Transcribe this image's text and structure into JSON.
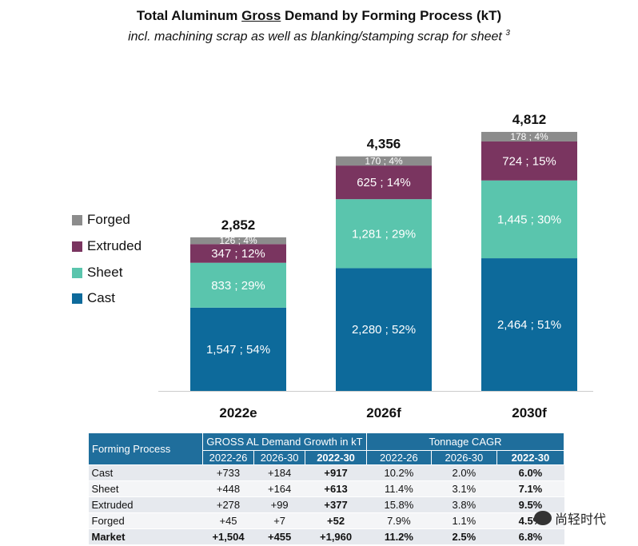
{
  "chart_data": {
    "type": "bar",
    "stacked": true,
    "title_parts": [
      "Total Aluminum ",
      "Gross",
      " Demand by Forming Process (kT)"
    ],
    "subtitle": "incl. machining scrap as well as blanking/stamping scrap for sheet",
    "subtitle_sup": "3",
    "categories": [
      "2022e",
      "2026f",
      "2030f"
    ],
    "totals": [
      "2,852",
      "4,356",
      "4,812"
    ],
    "total_values": [
      2852,
      4356,
      4812
    ],
    "series": [
      {
        "name": "Cast",
        "color": "#0d6a9b",
        "values": [
          1547,
          2280,
          2464
        ],
        "labels": [
          "1,547 ; 54%",
          "2,280 ; 52%",
          "2,464 ; 51%"
        ]
      },
      {
        "name": "Sheet",
        "color": "#5ac5ad",
        "values": [
          833,
          1281,
          1445
        ],
        "labels": [
          "833 ; 29%",
          "1,281 ; 29%",
          "1,445 ; 30%"
        ]
      },
      {
        "name": "Extruded",
        "color": "#7a3560",
        "values": [
          347,
          625,
          724
        ],
        "labels": [
          "347 ; 12%",
          "625 ; 14%",
          "724 ; 15%"
        ]
      },
      {
        "name": "Forged",
        "color": "#8c8c8c",
        "values": [
          126,
          170,
          178
        ],
        "labels": [
          "126 ; 4%",
          "170 ; 4%",
          "178 ; 4%"
        ]
      }
    ],
    "legend_order": [
      "Forged",
      "Extruded",
      "Sheet",
      "Cast"
    ],
    "ylim": [
      0,
      4900
    ],
    "legend_position": "left"
  },
  "table": {
    "header_first": "Forming Process",
    "group_growth": "GROSS AL Demand Growth in kT",
    "group_cagr": "Tonnage CAGR",
    "periods": [
      "2022-26",
      "2026-30",
      "2022-30",
      "2022-26",
      "2026-30",
      "2022-30"
    ],
    "rows": [
      {
        "name": "Cast",
        "cells": [
          "+733",
          "+184",
          "+917",
          "10.2%",
          "2.0%",
          "6.0%"
        ]
      },
      {
        "name": "Sheet",
        "cells": [
          "+448",
          "+164",
          "+613",
          "11.4%",
          "3.1%",
          "7.1%"
        ]
      },
      {
        "name": "Extruded",
        "cells": [
          "+278",
          "+99",
          "+377",
          "15.8%",
          "3.8%",
          "9.5%"
        ]
      },
      {
        "name": "Forged",
        "cells": [
          "+45",
          "+7",
          "+52",
          "7.9%",
          "1.1%",
          "4.5%"
        ]
      },
      {
        "name": "Market",
        "cells": [
          "+1,504",
          "+455",
          "+1,960",
          "11.2%",
          "2.5%",
          "6.8%"
        ]
      }
    ]
  },
  "watermark": "尚轻时代"
}
